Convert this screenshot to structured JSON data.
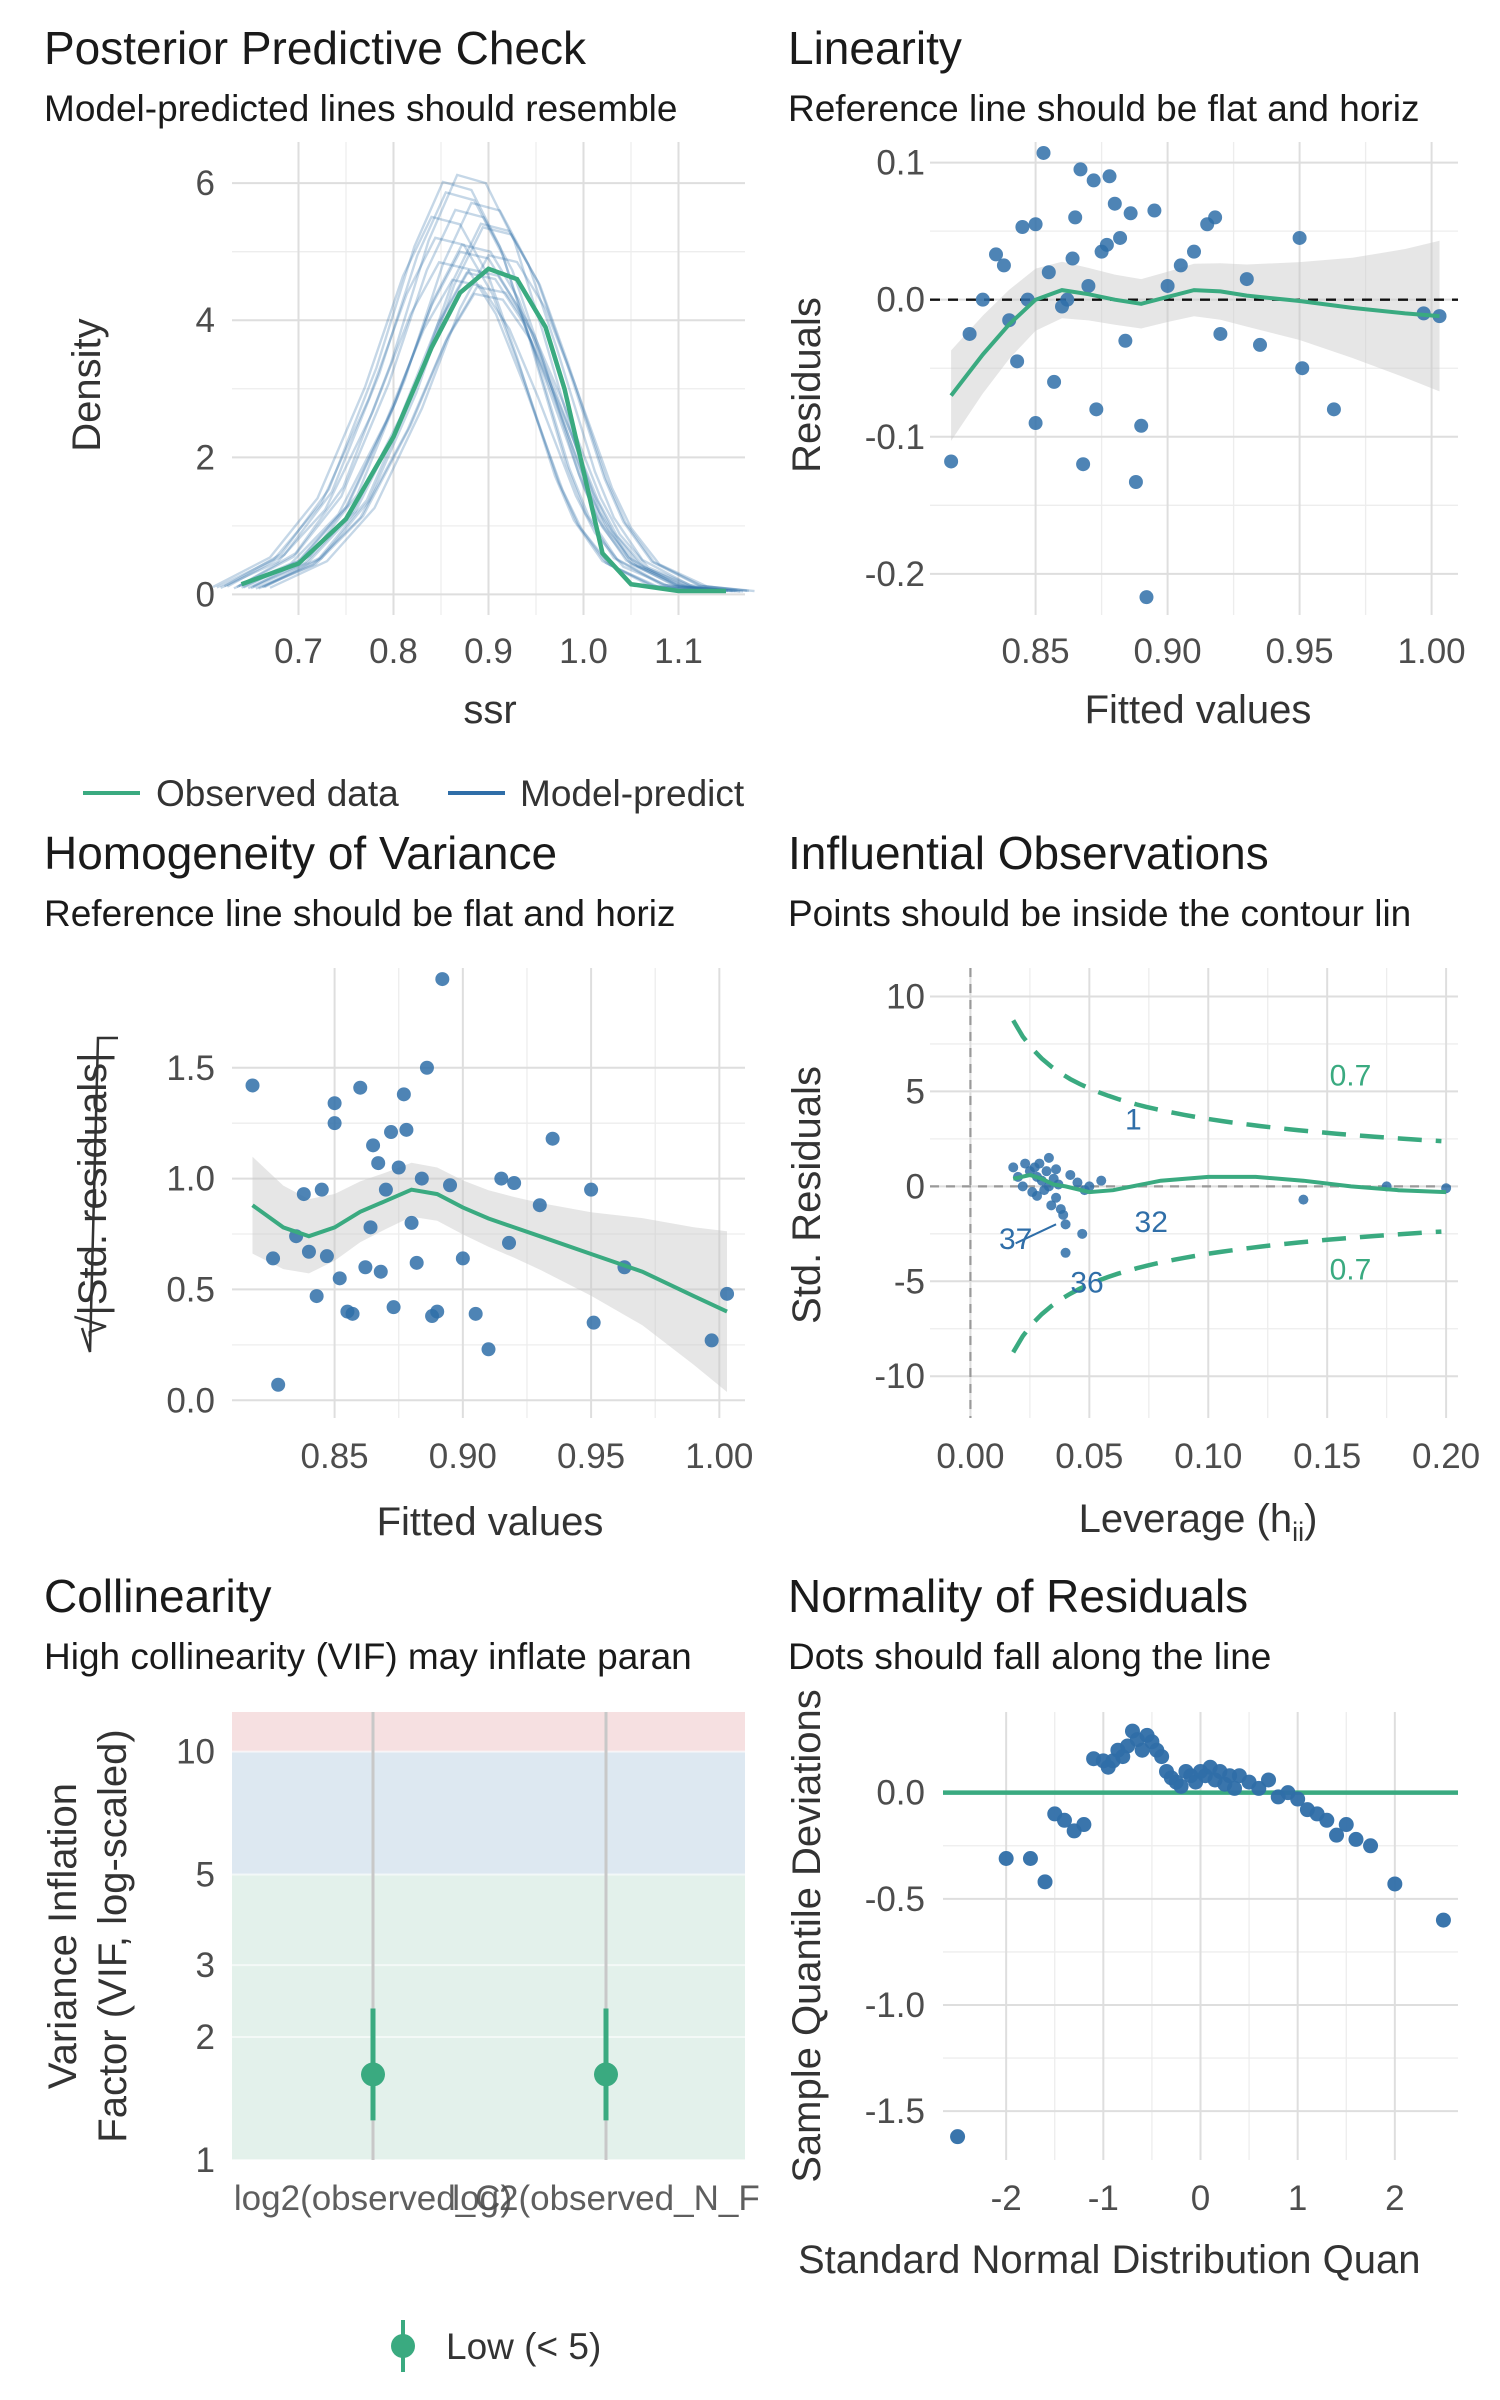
{
  "chart_data": [
    {
      "type": "line",
      "title": "Posterior Predictive Check",
      "subtitle": "Model-predicted lines should resemble",
      "xlabel": "ssr",
      "ylabel": "Density",
      "xlim": [
        0.63,
        1.17
      ],
      "ylim": [
        -0.3,
        6.6
      ],
      "x_ticks": [
        0.7,
        0.8,
        0.9,
        1.0,
        1.1
      ],
      "x_tick_labels": [
        "0.7",
        "0.8",
        "0.9",
        "1.0",
        "1.1"
      ],
      "y_ticks": [
        0,
        2,
        4,
        6
      ],
      "y_tick_labels": [
        "0",
        "2",
        "4",
        "6"
      ],
      "legend": [
        "Observed data",
        "Model-predict"
      ],
      "legend_position": "bottom",
      "series": [
        {
          "name": "Observed data",
          "color": "#3aaa80",
          "x": [
            0.64,
            0.7,
            0.75,
            0.8,
            0.84,
            0.87,
            0.9,
            0.93,
            0.96,
            0.98,
            1.0,
            1.02,
            1.05,
            1.1,
            1.15
          ],
          "y": [
            0.15,
            0.45,
            1.1,
            2.3,
            3.6,
            4.4,
            4.75,
            4.6,
            3.9,
            3.0,
            1.8,
            0.6,
            0.15,
            0.05,
            0.05
          ]
        },
        {
          "name": "Model-predict",
          "color": "#2f6ea8",
          "x": [
            0.64,
            0.7,
            0.75,
            0.8,
            0.84,
            0.87,
            0.9,
            0.93,
            0.96,
            0.98,
            1.0,
            1.02,
            1.05,
            1.1,
            1.15
          ],
          "y": [
            0.1,
            0.5,
            1.3,
            2.8,
            4.3,
            5.1,
            5.0,
            4.3,
            3.2,
            2.4,
            1.6,
            1.0,
            0.45,
            0.12,
            0.05
          ]
        }
      ]
    },
    {
      "type": "scatter",
      "title": "Linearity",
      "subtitle": "Reference line should be flat and horiz",
      "xlabel": "Fitted values",
      "ylabel": "Residuals",
      "xlim": [
        0.81,
        1.01
      ],
      "ylim": [
        -0.23,
        0.115
      ],
      "x_ticks": [
        0.85,
        0.9,
        0.95,
        1.0
      ],
      "x_tick_labels": [
        "0.85",
        "0.90",
        "0.95",
        "1.00"
      ],
      "y_ticks": [
        0.1,
        0.0,
        -0.1,
        -0.2
      ],
      "y_tick_labels": [
        "0.1",
        "0.0",
        "-0.1",
        "-0.2"
      ],
      "x": [
        0.818,
        0.825,
        0.83,
        0.835,
        0.838,
        0.84,
        0.843,
        0.845,
        0.847,
        0.85,
        0.85,
        0.853,
        0.855,
        0.857,
        0.86,
        0.862,
        0.864,
        0.865,
        0.867,
        0.868,
        0.87,
        0.872,
        0.873,
        0.875,
        0.877,
        0.878,
        0.88,
        0.882,
        0.884,
        0.886,
        0.888,
        0.89,
        0.892,
        0.895,
        0.9,
        0.905,
        0.91,
        0.915,
        0.918,
        0.92,
        0.93,
        0.935,
        0.95,
        0.951,
        0.963,
        0.997,
        1.003
      ],
      "y": [
        -0.118,
        -0.025,
        -0.0,
        0.033,
        0.025,
        -0.015,
        -0.045,
        0.053,
        0.0,
        -0.09,
        0.055,
        0.107,
        0.02,
        -0.06,
        -0.005,
        0.0,
        0.03,
        0.06,
        0.095,
        -0.12,
        0.01,
        0.087,
        -0.08,
        0.035,
        0.04,
        0.09,
        0.07,
        0.045,
        -0.03,
        0.063,
        -0.133,
        -0.092,
        -0.217,
        0.065,
        0.01,
        0.025,
        0.035,
        0.055,
        0.06,
        -0.025,
        0.015,
        -0.033,
        0.045,
        -0.05,
        -0.08,
        -0.01,
        -0.012
      ],
      "reference_y": 0.0,
      "smooth": {
        "color": "#3aaa80",
        "x": [
          0.818,
          0.83,
          0.84,
          0.85,
          0.86,
          0.87,
          0.88,
          0.89,
          0.9,
          0.91,
          0.92,
          0.93,
          0.95,
          0.97,
          0.99,
          1.003
        ],
        "y": [
          -0.07,
          -0.04,
          -0.018,
          0.0,
          0.007,
          0.004,
          0.0,
          -0.003,
          0.002,
          0.007,
          0.006,
          0.003,
          -0.001,
          -0.006,
          -0.01,
          -0.012
        ]
      }
    },
    {
      "type": "scatter",
      "title": "Homogeneity of Variance",
      "subtitle": "Reference line should be flat and horiz",
      "xlabel": "Fitted values",
      "ylabel": "√|Std. residuals|",
      "xlim": [
        0.81,
        1.01
      ],
      "ylim": [
        -0.08,
        1.95
      ],
      "x_ticks": [
        0.85,
        0.9,
        0.95,
        1.0
      ],
      "x_tick_labels": [
        "0.85",
        "0.90",
        "0.95",
        "1.00"
      ],
      "y_ticks": [
        0.0,
        0.5,
        1.0,
        1.5
      ],
      "y_tick_labels": [
        "0.0",
        "0.5",
        "1.0",
        "1.5"
      ],
      "x": [
        0.818,
        0.826,
        0.828,
        0.835,
        0.838,
        0.84,
        0.843,
        0.845,
        0.847,
        0.85,
        0.85,
        0.852,
        0.855,
        0.857,
        0.86,
        0.862,
        0.864,
        0.865,
        0.867,
        0.868,
        0.87,
        0.872,
        0.873,
        0.875,
        0.877,
        0.878,
        0.88,
        0.882,
        0.884,
        0.886,
        0.888,
        0.89,
        0.892,
        0.895,
        0.9,
        0.905,
        0.91,
        0.915,
        0.918,
        0.92,
        0.93,
        0.935,
        0.95,
        0.951,
        0.963,
        0.997,
        1.003
      ],
      "y": [
        1.42,
        0.64,
        0.07,
        0.74,
        0.93,
        0.67,
        0.47,
        0.95,
        0.65,
        1.25,
        1.34,
        0.55,
        0.4,
        0.39,
        1.41,
        0.6,
        0.78,
        1.15,
        1.07,
        0.58,
        0.95,
        1.21,
        0.42,
        1.05,
        1.38,
        1.22,
        0.8,
        0.62,
        1.0,
        1.5,
        0.38,
        0.4,
        1.9,
        0.97,
        0.64,
        0.39,
        0.23,
        1.0,
        0.71,
        0.98,
        0.88,
        1.18,
        0.95,
        0.35,
        0.6,
        0.27,
        0.48
      ],
      "smooth": {
        "color": "#3aaa80",
        "x": [
          0.818,
          0.83,
          0.84,
          0.85,
          0.86,
          0.87,
          0.88,
          0.89,
          0.9,
          0.91,
          0.92,
          0.93,
          0.95,
          0.97,
          0.99,
          1.003
        ],
        "y": [
          0.88,
          0.78,
          0.74,
          0.78,
          0.85,
          0.9,
          0.95,
          0.93,
          0.87,
          0.82,
          0.78,
          0.74,
          0.66,
          0.58,
          0.47,
          0.4
        ]
      }
    },
    {
      "type": "scatter",
      "title": "Influential Observations",
      "subtitle": "Points should be inside the contour lin",
      "xlabel": "Leverage (h",
      "xlabel_subscript": "ii",
      "xlabel_close": ")",
      "ylabel": "Std. Residuals",
      "xlim": [
        -0.017,
        0.205
      ],
      "ylim": [
        -12.2,
        11.5
      ],
      "x_ticks": [
        0.0,
        0.05,
        0.1,
        0.15,
        0.2
      ],
      "x_tick_labels": [
        "0.00",
        "0.05",
        "0.10",
        "0.15",
        "0.20"
      ],
      "y_ticks": [
        10,
        5,
        0,
        -5,
        -10
      ],
      "y_tick_labels": [
        "10",
        "5",
        "0",
        "-5",
        "-10"
      ],
      "x": [
        0.018,
        0.02,
        0.022,
        0.023,
        0.025,
        0.026,
        0.027,
        0.028,
        0.028,
        0.029,
        0.03,
        0.031,
        0.032,
        0.033,
        0.033,
        0.034,
        0.035,
        0.036,
        0.036,
        0.037,
        0.038,
        0.04,
        0.04,
        0.042,
        0.045,
        0.048,
        0.05,
        0.055,
        0.14,
        0.175,
        0.2,
        0.039,
        0.047
      ],
      "y": [
        1.0,
        0.5,
        0.0,
        1.2,
        0.8,
        -0.3,
        1.0,
        0.5,
        -0.5,
        1.2,
        0.3,
        -0.2,
        0.8,
        0.0,
        1.5,
        -1.0,
        0.4,
        -0.6,
        0.9,
        0.1,
        -1.2,
        -2.0,
        -3.5,
        0.6,
        0.2,
        -0.2,
        0.0,
        0.3,
        -0.7,
        0.0,
        -0.1,
        -1.5,
        -2.5
      ],
      "point_labels": [
        {
          "label": "1",
          "x": 0.065,
          "y": 3.0
        },
        {
          "label": "32",
          "x": 0.069,
          "y": -2.4
        },
        {
          "label": "37",
          "x": 0.012,
          "y": -3.3
        },
        {
          "label": "36",
          "x": 0.042,
          "y": -5.6
        }
      ],
      "contour_label": "0.7",
      "contour_labels": [
        {
          "label": "0.7",
          "x": 0.151,
          "y": 5.3
        },
        {
          "label": "0.7",
          "x": 0.151,
          "y": -4.9
        }
      ],
      "smooth": {
        "color": "#3aaa80",
        "x": [
          0.018,
          0.025,
          0.03,
          0.035,
          0.04,
          0.05,
          0.06,
          0.08,
          0.1,
          0.12,
          0.14,
          0.16,
          0.18,
          0.2
        ],
        "y": [
          0.4,
          0.6,
          0.4,
          0.1,
          0.0,
          -0.3,
          -0.2,
          0.3,
          0.5,
          0.5,
          0.3,
          0.0,
          -0.2,
          -0.3
        ]
      }
    },
    {
      "type": "scatter",
      "title": "Collinearity",
      "subtitle": "High collinearity (VIF) may inflate paran",
      "xlabel": "",
      "ylabel": [
        "Variance Inflation",
        "Factor (VIF, log-scaled)"
      ],
      "y_scale": "log",
      "ylim": [
        1,
        12.5
      ],
      "y_ticks": [
        1,
        2,
        3,
        5,
        10
      ],
      "y_tick_labels": [
        "1",
        "2",
        "3",
        "5",
        "10"
      ],
      "categories": [
        "log2(observed_C)",
        "log2(observed_N_F"
      ],
      "values": [
        1.62,
        1.62
      ],
      "ci_low": [
        1.25,
        1.25
      ],
      "ci_high": [
        2.35,
        2.35
      ],
      "bands": [
        {
          "from": 1,
          "to": 5,
          "color": "#e3f1eb"
        },
        {
          "from": 5,
          "to": 10,
          "color": "#dde8f1"
        },
        {
          "from": 10,
          "to": 12.5,
          "color": "#f6e0e1"
        }
      ],
      "legend": [
        "Low (< 5)"
      ],
      "legend_position": "bottom",
      "color": "#3aaa80"
    },
    {
      "type": "scatter",
      "title": "Normality of Residuals",
      "subtitle": "Dots should fall along the line",
      "xlabel": "Standard Normal Distribution Quan",
      "ylabel": "Sample Quantile Deviations",
      "xlim": [
        -2.65,
        2.65
      ],
      "ylim": [
        -1.73,
        0.38
      ],
      "x_ticks": [
        -2,
        -1,
        0,
        1,
        2
      ],
      "x_tick_labels": [
        "-2",
        "-1",
        "0",
        "1",
        "2"
      ],
      "y_ticks": [
        0.0,
        -0.5,
        -1.0,
        -1.5
      ],
      "y_tick_labels": [
        "0.0",
        "-0.5",
        "-1.0",
        "-1.5"
      ],
      "reference_y": 0.0,
      "x": [
        -2.5,
        -2.0,
        -1.75,
        -1.6,
        -1.5,
        -1.4,
        -1.3,
        -1.2,
        -1.1,
        -1.0,
        -0.95,
        -0.9,
        -0.85,
        -0.8,
        -0.75,
        -0.7,
        -0.65,
        -0.6,
        -0.55,
        -0.5,
        -0.45,
        -0.4,
        -0.35,
        -0.3,
        -0.25,
        -0.2,
        -0.15,
        -0.1,
        -0.05,
        0.0,
        0.05,
        0.1,
        0.15,
        0.2,
        0.25,
        0.3,
        0.35,
        0.4,
        0.5,
        0.6,
        0.7,
        0.8,
        0.9,
        1.0,
        1.1,
        1.2,
        1.3,
        1.4,
        1.5,
        1.6,
        1.75,
        2.0,
        2.5
      ],
      "y": [
        -1.62,
        -0.31,
        -0.31,
        -0.42,
        -0.1,
        -0.13,
        -0.18,
        -0.15,
        0.16,
        0.15,
        0.12,
        0.15,
        0.2,
        0.17,
        0.22,
        0.29,
        0.25,
        0.2,
        0.27,
        0.24,
        0.2,
        0.17,
        0.1,
        0.07,
        0.05,
        0.03,
        0.1,
        0.08,
        0.05,
        0.1,
        0.08,
        0.12,
        0.06,
        0.1,
        0.04,
        0.08,
        0.02,
        0.08,
        0.05,
        0.02,
        0.06,
        -0.02,
        0.0,
        -0.03,
        -0.08,
        -0.1,
        -0.13,
        -0.2,
        -0.15,
        -0.22,
        -0.25,
        -0.43,
        -0.6
      ]
    }
  ]
}
